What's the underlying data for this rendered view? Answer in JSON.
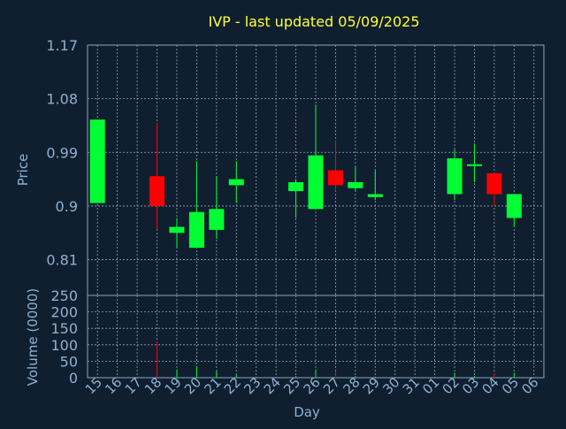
{
  "chart_data": {
    "type": "candlestick",
    "title": "IVP - last updated 05/09/2025",
    "xlabel": "Day",
    "ylabel_price": "Price",
    "ylabel_volume": "Volume (0000)",
    "price_ylim": [
      0.75,
      1.17
    ],
    "price_yticks": [
      "1.17",
      "1.08",
      "0.99",
      "0.9",
      "0.81"
    ],
    "volume_ylim": [
      0,
      250
    ],
    "volume_yticks": [
      "250",
      "200",
      "150",
      "100",
      "50",
      "0"
    ],
    "grid": true,
    "x_labels": [
      "15",
      "16",
      "17",
      "18",
      "19",
      "20",
      "21",
      "22",
      "23",
      "24",
      "25",
      "26",
      "27",
      "28",
      "29",
      "30",
      "31",
      "01",
      "02",
      "03",
      "04",
      "05",
      "06"
    ],
    "candles": [
      {
        "day": "15",
        "open": 0.905,
        "high": 1.045,
        "low": 0.905,
        "close": 1.045,
        "volume": 0
      },
      {
        "day": "18",
        "open": 0.95,
        "high": 1.04,
        "low": 0.86,
        "close": 0.9,
        "volume": 110
      },
      {
        "day": "19",
        "open": 0.855,
        "high": 0.88,
        "low": 0.83,
        "close": 0.865,
        "volume": 25
      },
      {
        "day": "20",
        "open": 0.83,
        "high": 0.975,
        "low": 0.83,
        "close": 0.89,
        "volume": 35
      },
      {
        "day": "21",
        "open": 0.86,
        "high": 0.95,
        "low": 0.845,
        "close": 0.895,
        "volume": 20
      },
      {
        "day": "22",
        "open": 0.935,
        "high": 0.975,
        "low": 0.905,
        "close": 0.945,
        "volume": 8
      },
      {
        "day": "25",
        "open": 0.925,
        "high": 0.945,
        "low": 0.88,
        "close": 0.94,
        "volume": 5
      },
      {
        "day": "26",
        "open": 0.895,
        "high": 1.07,
        "low": 0.895,
        "close": 0.985,
        "volume": 25
      },
      {
        "day": "27",
        "open": 0.96,
        "high": 1.01,
        "low": 0.925,
        "close": 0.935,
        "volume": 18
      },
      {
        "day": "28",
        "open": 0.93,
        "high": 0.965,
        "low": 0.925,
        "close": 0.94,
        "volume": 5
      },
      {
        "day": "29",
        "open": 0.915,
        "high": 0.96,
        "low": 0.91,
        "close": 0.92,
        "volume": 3
      },
      {
        "day": "02",
        "open": 0.92,
        "high": 0.995,
        "low": 0.91,
        "close": 0.98,
        "volume": 15
      },
      {
        "day": "03",
        "open": 0.97,
        "high": 1.005,
        "low": 0.94,
        "close": 0.97,
        "volume": 5
      },
      {
        "day": "04",
        "open": 0.955,
        "high": 0.955,
        "low": 0.9,
        "close": 0.92,
        "volume": 15
      },
      {
        "day": "05",
        "open": 0.88,
        "high": 0.92,
        "low": 0.865,
        "close": 0.92,
        "volume": 15
      }
    ],
    "colors": {
      "up": "#00ff33",
      "down": "#ff0000",
      "background": "#0f1f30",
      "grid": "#8fa6bf",
      "title": "#ffff33",
      "axis_text": "#8fb0d0"
    }
  }
}
